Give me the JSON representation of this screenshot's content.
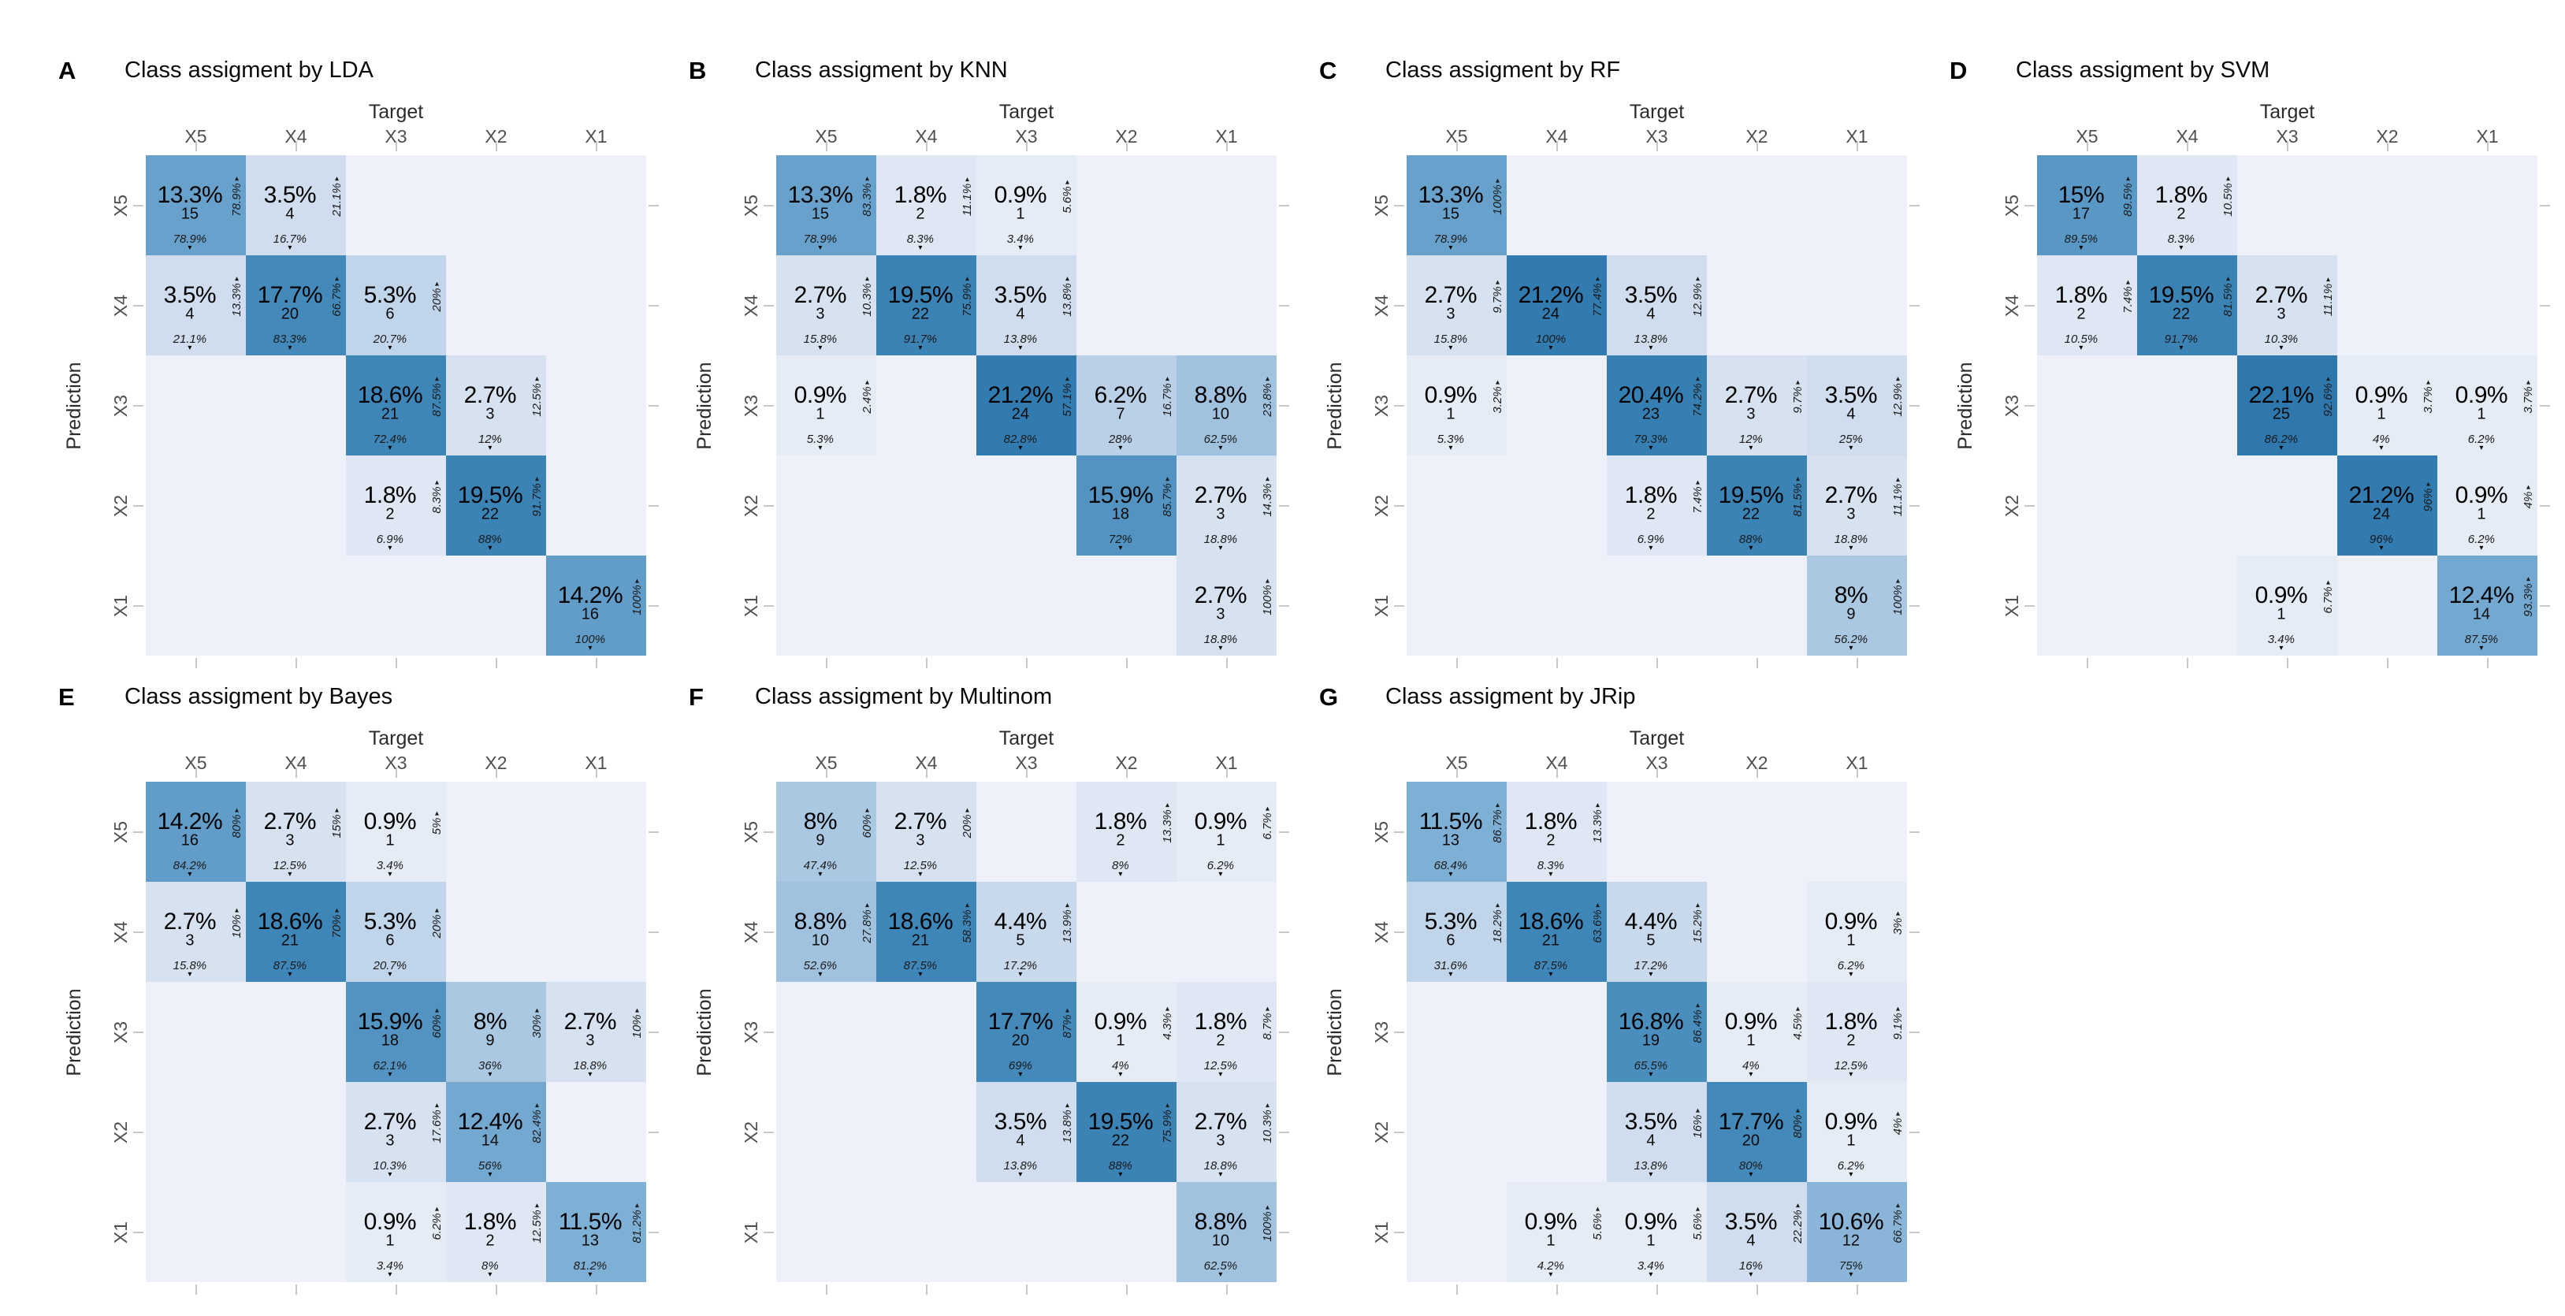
{
  "labels": {
    "target": "Target",
    "prediction": "Prediction"
  },
  "classes": [
    "X5",
    "X4",
    "X3",
    "X2",
    "X1"
  ],
  "colors": {
    "background": "#ffffff",
    "tick": "#c8c8c8",
    "scale_anchors": {
      "0": "#eef1f9",
      "4": "#cfddee",
      "9": "#abc8e3",
      "15": "#68a2cc",
      "20": "#4389ba",
      "25": "#2e78ae"
    },
    "hatch_line": "rgba(125,145,185,0.30)"
  },
  "chart_data": [
    {
      "type": "heatmap",
      "letter": "A",
      "title": "Class assigment by LDA",
      "xlabel": "Target",
      "ylabel": "Prediction",
      "x": [
        "X5",
        "X4",
        "X3",
        "X2",
        "X1"
      ],
      "y": [
        "X5",
        "X4",
        "X3",
        "X2",
        "X1"
      ],
      "cells": [
        [
          {
            "p": "13.3%",
            "n": 15,
            "c": "78.9%",
            "r": "78.9%"
          },
          {
            "p": "3.5%",
            "n": 4,
            "c": "16.7%",
            "r": "21.1%"
          },
          null,
          null,
          null
        ],
        [
          {
            "p": "3.5%",
            "n": 4,
            "c": "21.1%",
            "r": "13.3%"
          },
          {
            "p": "17.7%",
            "n": 20,
            "c": "83.3%",
            "r": "66.7%"
          },
          {
            "p": "5.3%",
            "n": 6,
            "c": "20.7%",
            "r": "20%"
          },
          null,
          null
        ],
        [
          null,
          null,
          {
            "p": "18.6%",
            "n": 21,
            "c": "72.4%",
            "r": "87.5%"
          },
          {
            "p": "2.7%",
            "n": 3,
            "c": "12%",
            "r": "12.5%"
          },
          null
        ],
        [
          null,
          null,
          {
            "p": "1.8%",
            "n": 2,
            "c": "6.9%",
            "r": "8.3%"
          },
          {
            "p": "19.5%",
            "n": 22,
            "c": "88%",
            "r": "91.7%"
          },
          null
        ],
        [
          null,
          null,
          null,
          null,
          {
            "p": "14.2%",
            "n": 16,
            "c": "100%",
            "r": "100%"
          }
        ]
      ]
    },
    {
      "type": "heatmap",
      "letter": "B",
      "title": "Class assigment by KNN",
      "xlabel": "Target",
      "ylabel": "Prediction",
      "x": [
        "X5",
        "X4",
        "X3",
        "X2",
        "X1"
      ],
      "y": [
        "X5",
        "X4",
        "X3",
        "X2",
        "X1"
      ],
      "cells": [
        [
          {
            "p": "13.3%",
            "n": 15,
            "c": "78.9%",
            "r": "83.3%"
          },
          {
            "p": "1.8%",
            "n": 2,
            "c": "8.3%",
            "r": "11.1%"
          },
          {
            "p": "0.9%",
            "n": 1,
            "c": "3.4%",
            "r": "5.6%"
          },
          null,
          null
        ],
        [
          {
            "p": "2.7%",
            "n": 3,
            "c": "15.8%",
            "r": "10.3%"
          },
          {
            "p": "19.5%",
            "n": 22,
            "c": "91.7%",
            "r": "75.9%"
          },
          {
            "p": "3.5%",
            "n": 4,
            "c": "13.8%",
            "r": "13.8%"
          },
          null,
          null
        ],
        [
          {
            "p": "0.9%",
            "n": 1,
            "c": "5.3%",
            "r": "2.4%"
          },
          null,
          {
            "p": "21.2%",
            "n": 24,
            "c": "82.8%",
            "r": "57.1%"
          },
          {
            "p": "6.2%",
            "n": 7,
            "c": "28%",
            "r": "16.7%"
          },
          {
            "p": "8.8%",
            "n": 10,
            "c": "62.5%",
            "r": "23.8%"
          }
        ],
        [
          null,
          null,
          null,
          {
            "p": "15.9%",
            "n": 18,
            "c": "72%",
            "r": "85.7%"
          },
          {
            "p": "2.7%",
            "n": 3,
            "c": "18.8%",
            "r": "14.3%"
          }
        ],
        [
          null,
          null,
          null,
          null,
          {
            "p": "2.7%",
            "n": 3,
            "c": "18.8%",
            "r": "100%"
          }
        ]
      ]
    },
    {
      "type": "heatmap",
      "letter": "C",
      "title": "Class assigment by RF",
      "xlabel": "Target",
      "ylabel": "Prediction",
      "x": [
        "X5",
        "X4",
        "X3",
        "X2",
        "X1"
      ],
      "y": [
        "X5",
        "X4",
        "X3",
        "X2",
        "X1"
      ],
      "cells": [
        [
          {
            "p": "13.3%",
            "n": 15,
            "c": "78.9%",
            "r": "100%"
          },
          null,
          null,
          null,
          null
        ],
        [
          {
            "p": "2.7%",
            "n": 3,
            "c": "15.8%",
            "r": "9.7%"
          },
          {
            "p": "21.2%",
            "n": 24,
            "c": "100%",
            "r": "77.4%"
          },
          {
            "p": "3.5%",
            "n": 4,
            "c": "13.8%",
            "r": "12.9%"
          },
          null,
          null
        ],
        [
          {
            "p": "0.9%",
            "n": 1,
            "c": "5.3%",
            "r": "3.2%"
          },
          null,
          {
            "p": "20.4%",
            "n": 23,
            "c": "79.3%",
            "r": "74.2%"
          },
          {
            "p": "2.7%",
            "n": 3,
            "c": "12%",
            "r": "9.7%"
          },
          {
            "p": "3.5%",
            "n": 4,
            "c": "25%",
            "r": "12.9%"
          }
        ],
        [
          null,
          null,
          {
            "p": "1.8%",
            "n": 2,
            "c": "6.9%",
            "r": "7.4%"
          },
          {
            "p": "19.5%",
            "n": 22,
            "c": "88%",
            "r": "81.5%"
          },
          {
            "p": "2.7%",
            "n": 3,
            "c": "18.8%",
            "r": "11.1%"
          }
        ],
        [
          null,
          null,
          null,
          null,
          {
            "p": "8%",
            "n": 9,
            "c": "56.2%",
            "r": "100%"
          }
        ]
      ]
    },
    {
      "type": "heatmap",
      "letter": "D",
      "title": "Class assigment by SVM",
      "xlabel": "Target",
      "ylabel": "Prediction",
      "x": [
        "X5",
        "X4",
        "X3",
        "X2",
        "X1"
      ],
      "y": [
        "X5",
        "X4",
        "X3",
        "X2",
        "X1"
      ],
      "cells": [
        [
          {
            "p": "15%",
            "n": 17,
            "c": "89.5%",
            "r": "89.5%"
          },
          {
            "p": "1.8%",
            "n": 2,
            "c": "8.3%",
            "r": "10.5%"
          },
          null,
          null,
          null
        ],
        [
          {
            "p": "1.8%",
            "n": 2,
            "c": "10.5%",
            "r": "7.4%"
          },
          {
            "p": "19.5%",
            "n": 22,
            "c": "91.7%",
            "r": "81.5%"
          },
          {
            "p": "2.7%",
            "n": 3,
            "c": "10.3%",
            "r": "11.1%"
          },
          null,
          null
        ],
        [
          null,
          null,
          {
            "p": "22.1%",
            "n": 25,
            "c": "86.2%",
            "r": "92.6%"
          },
          {
            "p": "0.9%",
            "n": 1,
            "c": "4%",
            "r": "3.7%"
          },
          {
            "p": "0.9%",
            "n": 1,
            "c": "6.2%",
            "r": "3.7%"
          }
        ],
        [
          null,
          null,
          null,
          {
            "p": "21.2%",
            "n": 24,
            "c": "96%",
            "r": "96%"
          },
          {
            "p": "0.9%",
            "n": 1,
            "c": "6.2%",
            "r": "4%"
          }
        ],
        [
          null,
          null,
          {
            "p": "0.9%",
            "n": 1,
            "c": "3.4%",
            "r": "6.7%"
          },
          null,
          {
            "p": "12.4%",
            "n": 14,
            "c": "87.5%",
            "r": "93.3%"
          }
        ]
      ]
    },
    {
      "type": "heatmap",
      "letter": "E",
      "title": "Class assigment by Bayes",
      "xlabel": "Target",
      "ylabel": "Prediction",
      "x": [
        "X5",
        "X4",
        "X3",
        "X2",
        "X1"
      ],
      "y": [
        "X5",
        "X4",
        "X3",
        "X2",
        "X1"
      ],
      "cells": [
        [
          {
            "p": "14.2%",
            "n": 16,
            "c": "84.2%",
            "r": "80%"
          },
          {
            "p": "2.7%",
            "n": 3,
            "c": "12.5%",
            "r": "15%"
          },
          {
            "p": "0.9%",
            "n": 1,
            "c": "3.4%",
            "r": "5%"
          },
          null,
          null
        ],
        [
          {
            "p": "2.7%",
            "n": 3,
            "c": "15.8%",
            "r": "10%"
          },
          {
            "p": "18.6%",
            "n": 21,
            "c": "87.5%",
            "r": "70%"
          },
          {
            "p": "5.3%",
            "n": 6,
            "c": "20.7%",
            "r": "20%"
          },
          null,
          null
        ],
        [
          null,
          null,
          {
            "p": "15.9%",
            "n": 18,
            "c": "62.1%",
            "r": "60%"
          },
          {
            "p": "8%",
            "n": 9,
            "c": "36%",
            "r": "30%"
          },
          {
            "p": "2.7%",
            "n": 3,
            "c": "18.8%",
            "r": "10%"
          }
        ],
        [
          null,
          null,
          {
            "p": "2.7%",
            "n": 3,
            "c": "10.3%",
            "r": "17.6%"
          },
          {
            "p": "12.4%",
            "n": 14,
            "c": "56%",
            "r": "82.4%"
          },
          null
        ],
        [
          null,
          null,
          {
            "p": "0.9%",
            "n": 1,
            "c": "3.4%",
            "r": "6.2%"
          },
          {
            "p": "1.8%",
            "n": 2,
            "c": "8%",
            "r": "12.5%"
          },
          {
            "p": "11.5%",
            "n": 13,
            "c": "81.2%",
            "r": "81.2%"
          }
        ]
      ]
    },
    {
      "type": "heatmap",
      "letter": "F",
      "title": "Class assigment by Multinom",
      "xlabel": "Target",
      "ylabel": "Prediction",
      "x": [
        "X5",
        "X4",
        "X3",
        "X2",
        "X1"
      ],
      "y": [
        "X5",
        "X4",
        "X3",
        "X2",
        "X1"
      ],
      "cells": [
        [
          {
            "p": "8%",
            "n": 9,
            "c": "47.4%",
            "r": "60%"
          },
          {
            "p": "2.7%",
            "n": 3,
            "c": "12.5%",
            "r": "20%"
          },
          null,
          {
            "p": "1.8%",
            "n": 2,
            "c": "8%",
            "r": "13.3%"
          },
          {
            "p": "0.9%",
            "n": 1,
            "c": "6.2%",
            "r": "6.7%"
          }
        ],
        [
          {
            "p": "8.8%",
            "n": 10,
            "c": "52.6%",
            "r": "27.8%"
          },
          {
            "p": "18.6%",
            "n": 21,
            "c": "87.5%",
            "r": "58.3%"
          },
          {
            "p": "4.4%",
            "n": 5,
            "c": "17.2%",
            "r": "13.9%"
          },
          null,
          null
        ],
        [
          null,
          null,
          {
            "p": "17.7%",
            "n": 20,
            "c": "69%",
            "r": "87%"
          },
          {
            "p": "0.9%",
            "n": 1,
            "c": "4%",
            "r": "4.3%"
          },
          {
            "p": "1.8%",
            "n": 2,
            "c": "12.5%",
            "r": "8.7%"
          }
        ],
        [
          null,
          null,
          {
            "p": "3.5%",
            "n": 4,
            "c": "13.8%",
            "r": "13.8%"
          },
          {
            "p": "19.5%",
            "n": 22,
            "c": "88%",
            "r": "75.9%"
          },
          {
            "p": "2.7%",
            "n": 3,
            "c": "18.8%",
            "r": "10.3%"
          }
        ],
        [
          null,
          null,
          null,
          null,
          {
            "p": "8.8%",
            "n": 10,
            "c": "62.5%",
            "r": "100%"
          }
        ]
      ]
    },
    {
      "type": "heatmap",
      "letter": "G",
      "title": "Class assigment by JRip",
      "xlabel": "Target",
      "ylabel": "Prediction",
      "x": [
        "X5",
        "X4",
        "X3",
        "X2",
        "X1"
      ],
      "y": [
        "X5",
        "X4",
        "X3",
        "X2",
        "X1"
      ],
      "cells": [
        [
          {
            "p": "11.5%",
            "n": 13,
            "c": "68.4%",
            "r": "86.7%"
          },
          {
            "p": "1.8%",
            "n": 2,
            "c": "8.3%",
            "r": "13.3%"
          },
          null,
          null,
          null
        ],
        [
          {
            "p": "5.3%",
            "n": 6,
            "c": "31.6%",
            "r": "18.2%"
          },
          {
            "p": "18.6%",
            "n": 21,
            "c": "87.5%",
            "r": "63.6%"
          },
          {
            "p": "4.4%",
            "n": 5,
            "c": "17.2%",
            "r": "15.2%"
          },
          null,
          {
            "p": "0.9%",
            "n": 1,
            "c": "6.2%",
            "r": "3%"
          }
        ],
        [
          null,
          null,
          {
            "p": "16.8%",
            "n": 19,
            "c": "65.5%",
            "r": "86.4%"
          },
          {
            "p": "0.9%",
            "n": 1,
            "c": "4%",
            "r": "4.5%"
          },
          {
            "p": "1.8%",
            "n": 2,
            "c": "12.5%",
            "r": "9.1%"
          }
        ],
        [
          null,
          null,
          {
            "p": "3.5%",
            "n": 4,
            "c": "13.8%",
            "r": "16%"
          },
          {
            "p": "17.7%",
            "n": 20,
            "c": "80%",
            "r": "80%"
          },
          {
            "p": "0.9%",
            "n": 1,
            "c": "6.2%",
            "r": "4%"
          }
        ],
        [
          null,
          {
            "p": "0.9%",
            "n": 1,
            "c": "4.2%",
            "r": "5.6%"
          },
          {
            "p": "0.9%",
            "n": 1,
            "c": "3.4%",
            "r": "5.6%"
          },
          {
            "p": "3.5%",
            "n": 4,
            "c": "16%",
            "r": "22.2%"
          },
          {
            "p": "10.6%",
            "n": 12,
            "c": "75%",
            "r": "66.7%"
          }
        ]
      ]
    }
  ]
}
